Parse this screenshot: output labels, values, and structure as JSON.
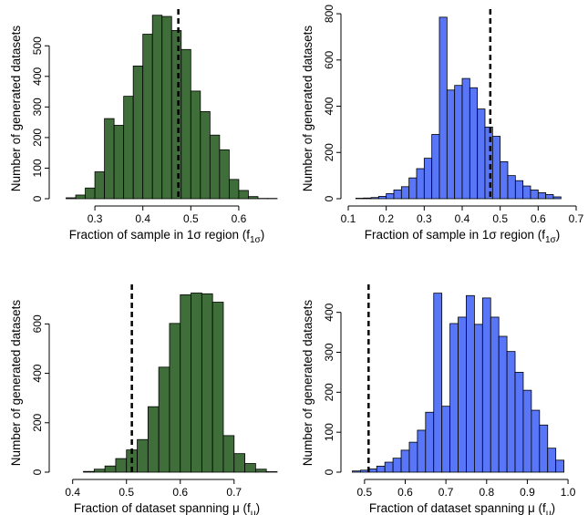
{
  "chart_data": [
    {
      "type": "bar",
      "color": "#3f6e3a",
      "xlabel": "Fraction of sample in 1σ region (f",
      "xlabel_sub": "1σ",
      "xlabel_end": ")",
      "ylabel": "Number of generated datasets",
      "xlim": [
        0.22,
        0.68
      ],
      "ylim": [
        0,
        620
      ],
      "xticks": [
        0.3,
        0.4,
        0.5,
        0.6
      ],
      "xtick_labels": [
        "0.3",
        "0.4",
        "0.5",
        "0.6"
      ],
      "yticks": [
        0,
        100,
        200,
        300,
        400,
        500
      ],
      "ytick_labels": [
        "0",
        "100",
        "200",
        "300",
        "400",
        "500"
      ],
      "ref_line_x": 0.474,
      "bin_edges": [
        0.22,
        0.24,
        0.26,
        0.28,
        0.3,
        0.32,
        0.34,
        0.36,
        0.38,
        0.4,
        0.42,
        0.44,
        0.46,
        0.48,
        0.5,
        0.52,
        0.54,
        0.56,
        0.58,
        0.6,
        0.62,
        0.64,
        0.66,
        0.68
      ],
      "values": [
        0,
        3,
        12,
        35,
        88,
        262,
        240,
        335,
        434,
        538,
        600,
        596,
        550,
        488,
        352,
        285,
        208,
        160,
        63,
        27,
        7,
        1,
        1
      ]
    },
    {
      "type": "bar",
      "color": "#5876f7",
      "xlabel": "Fraction of sample in 1σ region (f",
      "xlabel_sub": "1σ",
      "xlabel_end": ")",
      "ylabel": "Number of generated datasets",
      "xlim": [
        0.1,
        0.7
      ],
      "ylim": [
        0,
        820
      ],
      "xticks": [
        0.1,
        0.2,
        0.3,
        0.4,
        0.5,
        0.6,
        0.7
      ],
      "xtick_labels": [
        "0.1",
        "0.2",
        "0.3",
        "0.4",
        "0.5",
        "0.6",
        "0.7"
      ],
      "yticks": [
        0,
        200,
        400,
        600,
        800
      ],
      "ytick_labels": [
        "0",
        "200",
        "400",
        "600",
        "800"
      ],
      "ref_line_x": 0.474,
      "bin_edges": [
        0.12,
        0.14,
        0.16,
        0.18,
        0.2,
        0.22,
        0.24,
        0.26,
        0.28,
        0.3,
        0.32,
        0.34,
        0.36,
        0.38,
        0.4,
        0.42,
        0.44,
        0.46,
        0.48,
        0.5,
        0.52,
        0.54,
        0.56,
        0.58,
        0.6,
        0.62,
        0.64,
        0.66
      ],
      "values": [
        2,
        3,
        5,
        10,
        22,
        38,
        52,
        90,
        130,
        175,
        278,
        785,
        470,
        490,
        520,
        480,
        388,
        310,
        270,
        160,
        100,
        78,
        55,
        38,
        26,
        18,
        8
      ]
    },
    {
      "type": "bar",
      "color": "#3f6e3a",
      "xlabel": "Fraction of dataset spanning μ (f",
      "xlabel_sub": "μ",
      "xlabel_end": ")",
      "ylabel": "Number of generated datasets",
      "xlim": [
        0.37,
        0.78
      ],
      "ylim": [
        0,
        760
      ],
      "xticks": [
        0.4,
        0.5,
        0.6,
        0.7
      ],
      "xtick_labels": [
        "0.4",
        "0.5",
        "0.6",
        "0.7"
      ],
      "yticks": [
        0,
        200,
        400,
        600
      ],
      "ytick_labels": [
        "0",
        "200",
        "400",
        "600"
      ],
      "ref_line_x": 0.51,
      "bin_edges": [
        0.4,
        0.42,
        0.44,
        0.46,
        0.48,
        0.5,
        0.52,
        0.54,
        0.56,
        0.58,
        0.6,
        0.62,
        0.64,
        0.66,
        0.68,
        0.7,
        0.72,
        0.74,
        0.76,
        0.78
      ],
      "values": [
        0,
        3,
        12,
        25,
        55,
        90,
        132,
        265,
        425,
        602,
        718,
        725,
        722,
        688,
        148,
        75,
        35,
        12,
        2
      ]
    },
    {
      "type": "bar",
      "color": "#5876f7",
      "xlabel": "Fraction of dataset spanning μ (f",
      "xlabel_sub": "μ",
      "xlabel_end": ")",
      "ylabel": "Number of generated datasets",
      "xlim": [
        0.46,
        1.02
      ],
      "ylim": [
        0,
        470
      ],
      "xticks": [
        0.5,
        0.6,
        0.7,
        0.8,
        0.9,
        1.0
      ],
      "xtick_labels": [
        "0.5",
        "0.6",
        "0.7",
        "0.8",
        "0.9",
        "1.0"
      ],
      "yticks": [
        0,
        100,
        200,
        300,
        400
      ],
      "ytick_labels": [
        "0",
        "100",
        "200",
        "300",
        "400"
      ],
      "ref_line_x": 0.51,
      "bin_edges": [
        0.47,
        0.49,
        0.51,
        0.53,
        0.55,
        0.57,
        0.59,
        0.61,
        0.63,
        0.65,
        0.67,
        0.69,
        0.71,
        0.73,
        0.75,
        0.77,
        0.79,
        0.81,
        0.83,
        0.85,
        0.87,
        0.89,
        0.91,
        0.93,
        0.95,
        0.97,
        0.99
      ],
      "values": [
        3,
        5,
        8,
        15,
        25,
        35,
        55,
        75,
        105,
        150,
        448,
        165,
        372,
        388,
        442,
        370,
        436,
        388,
        340,
        302,
        250,
        205,
        155,
        118,
        60,
        30
      ]
    }
  ]
}
